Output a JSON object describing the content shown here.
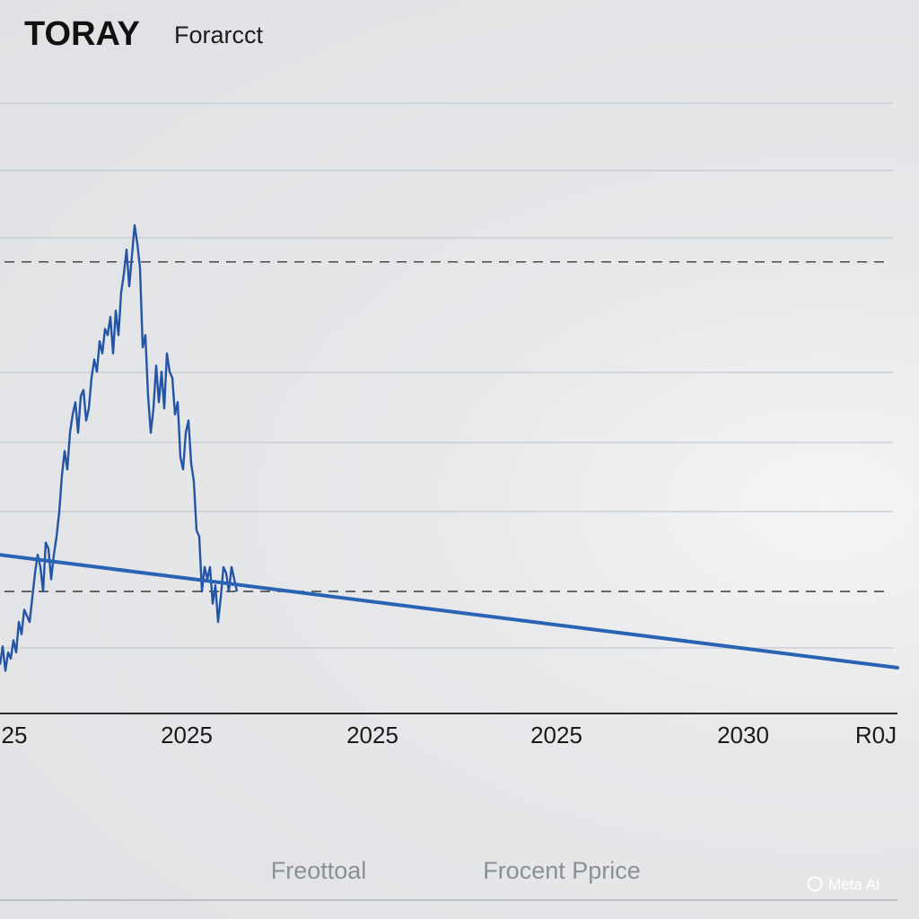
{
  "header": {
    "brand": "TORAY",
    "subtitle": "Forarcct"
  },
  "footer": {
    "labels": [
      "Freottoal",
      "Frocent Pprice"
    ]
  },
  "watermark": {
    "text": "Meta AI",
    "icon": "circle-icon"
  },
  "colors": {
    "series": "#2354a6",
    "trend": "#2a62b4",
    "grid": "#c6c9cd",
    "dashed": "#3a3a3a",
    "axis": "#2a2a2a"
  },
  "chart_data": {
    "type": "line",
    "grid": true,
    "legend": "none",
    "x_tick_labels": [
      "25",
      "2025",
      "2025",
      "2025",
      "2030",
      "R0J"
    ],
    "ylim": [
      0,
      10
    ],
    "reference_lines": [
      7.4,
      2.0
    ],
    "series": [
      {
        "style": "jagged",
        "x": [
          0,
          0.15,
          0.3,
          0.45,
          0.6,
          0.75,
          0.9,
          1.05,
          1.2,
          1.35,
          1.5,
          1.65,
          1.8,
          1.95,
          2.1,
          2.25,
          2.4,
          2.55,
          2.7,
          2.85,
          3.0,
          3.15,
          3.3,
          3.45,
          3.6,
          3.75,
          3.9,
          4.05,
          4.2,
          4.35,
          4.5,
          4.65,
          4.8,
          4.95,
          5.1,
          5.25,
          5.4,
          5.55,
          5.7,
          5.85,
          6.0,
          6.15,
          6.3,
          6.45,
          6.6,
          6.75,
          6.9,
          7.05,
          7.2,
          7.35,
          7.5,
          7.65,
          7.8,
          7.95,
          8.1,
          8.25,
          8.4,
          8.55,
          8.7,
          8.85,
          9.0,
          9.15,
          9.3,
          9.45,
          9.6,
          9.75,
          9.9,
          10.05,
          10.2,
          10.35,
          10.5,
          10.65,
          10.8,
          10.95,
          11.1,
          11.25,
          11.4,
          11.55,
          11.7,
          11.85,
          12.0,
          12.15,
          12.3,
          12.45,
          12.6,
          12.75,
          12.9,
          13.05,
          13.2
        ],
        "y": [
          0.8,
          1.1,
          0.7,
          1.0,
          0.9,
          1.2,
          1.0,
          1.5,
          1.3,
          1.7,
          1.6,
          1.5,
          1.9,
          2.3,
          2.6,
          2.4,
          2.0,
          2.8,
          2.7,
          2.2,
          2.6,
          2.9,
          3.3,
          3.9,
          4.3,
          4.0,
          4.6,
          4.9,
          5.1,
          4.6,
          5.2,
          5.3,
          4.8,
          5.0,
          5.5,
          5.8,
          5.6,
          6.1,
          5.9,
          6.3,
          6.2,
          6.5,
          5.9,
          6.6,
          6.2,
          6.9,
          7.2,
          7.6,
          7.0,
          7.5,
          8.0,
          7.7,
          7.3,
          6.0,
          6.2,
          5.2,
          4.6,
          5.0,
          5.7,
          5.1,
          5.6,
          5.0,
          5.9,
          5.6,
          5.5,
          4.9,
          5.1,
          4.2,
          4.0,
          4.6,
          4.8,
          4.1,
          3.8,
          3.0,
          2.9,
          2.0,
          2.4,
          2.2,
          2.4,
          1.8,
          2.1,
          1.5,
          1.9,
          2.4,
          2.3,
          2.0,
          2.4,
          2.2,
          2.0
        ]
      },
      {
        "style": "trend",
        "x": [
          0,
          50
        ],
        "y": [
          2.6,
          0.75
        ]
      }
    ]
  }
}
